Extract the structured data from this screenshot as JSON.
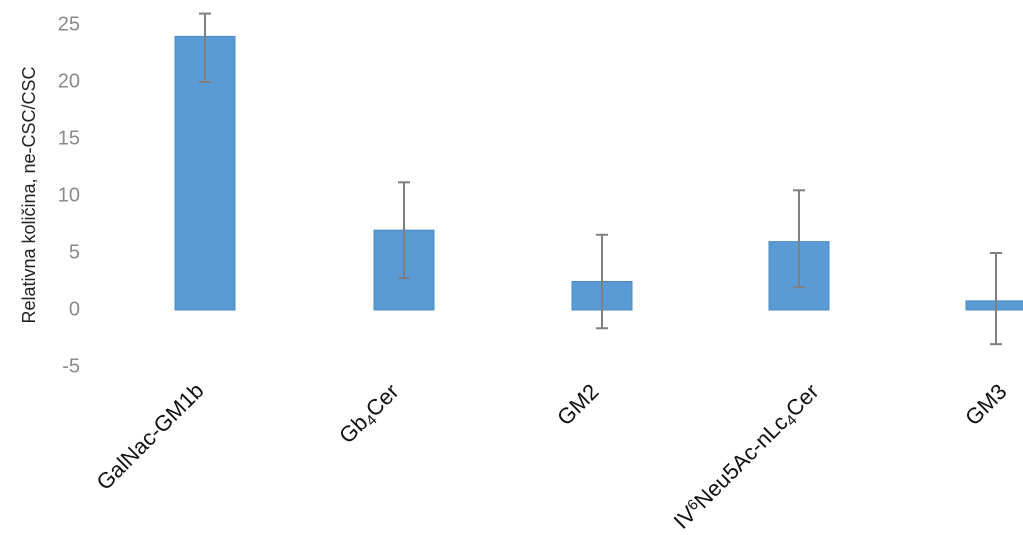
{
  "chart_data": {
    "type": "bar",
    "title": "",
    "xlabel": "",
    "ylabel": "Relativna količina, ne-CSC/CSC",
    "ylim": [
      -5,
      25
    ],
    "yticks": [
      "25",
      "20",
      "15",
      "10",
      "5",
      "0",
      "-5"
    ],
    "grid": false,
    "categories": [
      {
        "base": "GalNac-GM1b",
        "parts": [
          {
            "t": "GalNac-GM1b"
          }
        ]
      },
      {
        "base": "Gb4Cer",
        "parts": [
          {
            "t": "Gb"
          },
          {
            "t": "4",
            "sub": true
          },
          {
            "t": "Cer"
          }
        ]
      },
      {
        "base": "GM2",
        "parts": [
          {
            "t": "GM2"
          }
        ]
      },
      {
        "base": "IV6Neu5Ac-nLc4Cer",
        "parts": [
          {
            "t": "IV"
          },
          {
            "t": "6",
            "sup": true
          },
          {
            "t": "Neu5Ac-nLc"
          },
          {
            "t": "4",
            "sub": true
          },
          {
            "t": "Cer"
          }
        ]
      },
      {
        "base": "GM3",
        "parts": [
          {
            "t": "GM3"
          }
        ]
      }
    ],
    "values": [
      24,
      7,
      2.5,
      6,
      0.8
    ],
    "error_low": [
      20,
      2.8,
      -1.6,
      2,
      -3
    ],
    "error_high": [
      26,
      11.2,
      6.6,
      10.5,
      5
    ],
    "bar_color": "#5b9bd5",
    "bar_edge_color": "#4a88c6",
    "error_color": "#7f7f7f"
  }
}
